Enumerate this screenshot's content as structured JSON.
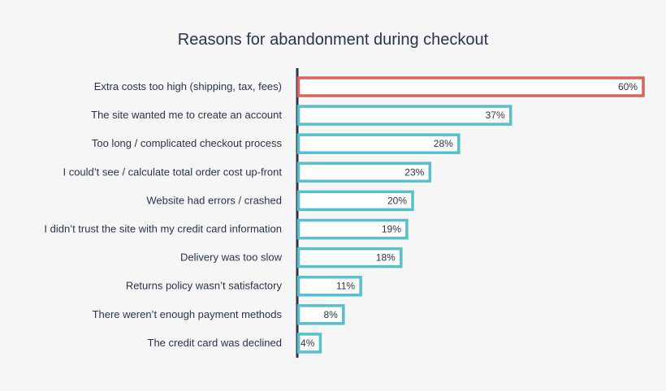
{
  "chart_data": {
    "type": "bar",
    "orientation": "horizontal",
    "title": "Reasons for abandonment during checkout",
    "categories": [
      "Extra costs too high (shipping, tax, fees)",
      "The site wanted me to create an account",
      "Too long / complicated checkout process",
      "I could’t see / calculate total order cost up-front",
      "Website had errors / crashed",
      "I didn’t trust the site with my credit card information",
      "Delivery was too slow",
      "Returns policy wasn’t satisfactory",
      "There weren’t enough payment methods",
      "The credit card was declined"
    ],
    "values": [
      60,
      37,
      28,
      23,
      20,
      19,
      18,
      11,
      8,
      4
    ],
    "value_labels": [
      "60%",
      "37%",
      "28%",
      "23%",
      "20%",
      "19%",
      "18%",
      "11%",
      "8%",
      "4%"
    ],
    "xlim": [
      0,
      60
    ],
    "grid": false,
    "legend": "none",
    "colors": {
      "highlight": "#d9645a",
      "default": "#57c0cc",
      "axis": "#2c3445",
      "text": "#2c3445",
      "bar_fill": "#ffffff",
      "background": "#f6f6f6"
    }
  }
}
